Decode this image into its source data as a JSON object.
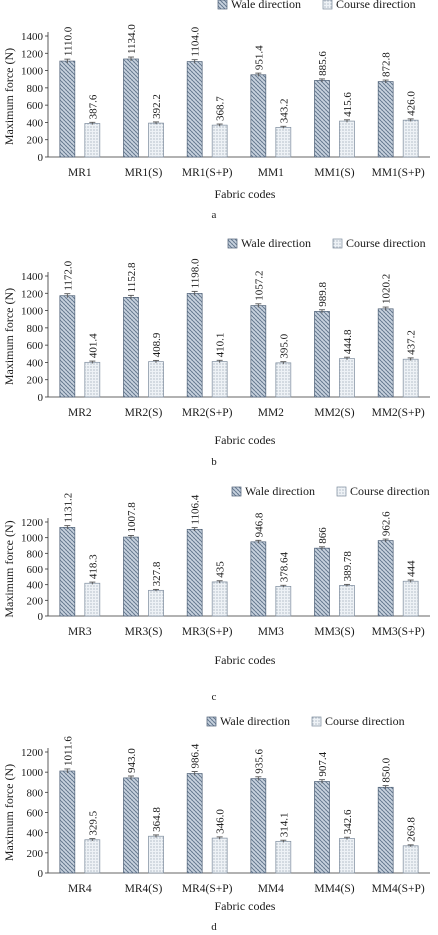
{
  "colors": {
    "wale_fill": "#c9d3df",
    "wale_hatch": "#5b6f86",
    "course_fill": "#eef2f6",
    "course_dots": "#6b7c8f",
    "axis": "#333333",
    "error_bar": "#555555"
  },
  "chart_data": [
    {
      "type": "bar",
      "panel": "a",
      "categories": [
        "MR1",
        "MR1(S)",
        "MR1(S+P)",
        "MM1",
        "MM1(S)",
        "MM1(S+P)"
      ],
      "series": [
        {
          "name": "Wale direction",
          "values": [
            1110.0,
            1134.0,
            1104.0,
            951.4,
            885.6,
            872.8
          ],
          "labels": [
            "1110.0",
            "1134.0",
            "1104.0",
            "951.4",
            "885.6",
            "872.8"
          ]
        },
        {
          "name": "Course direction",
          "values": [
            387.6,
            392.2,
            368.7,
            343.2,
            415.6,
            426.0
          ],
          "labels": [
            "387.6",
            "392.2",
            "368.7",
            "343.2",
            "415.6",
            "426.0"
          ]
        }
      ],
      "xlabel": "Fabric codes",
      "ylabel": "Maximum force (N)",
      "ylim": [
        0,
        1400
      ],
      "yticks": [
        0,
        200,
        400,
        600,
        800,
        1000,
        1200,
        1400
      ],
      "legend": "top-right",
      "grid": false
    },
    {
      "type": "bar",
      "panel": "b",
      "categories": [
        "MR2",
        "MR2(S)",
        "MR2(S+P)",
        "MM2",
        "MM2(S)",
        "MM2(S+P)"
      ],
      "series": [
        {
          "name": "Wale direction",
          "values": [
            1172.0,
            1152.8,
            1198.0,
            1057.2,
            989.8,
            1020.2
          ],
          "labels": [
            "1172.0",
            "1152.8",
            "1198.0",
            "1057.2",
            "989.8",
            "1020.2"
          ]
        },
        {
          "name": "Course direction",
          "values": [
            401.4,
            408.9,
            410.1,
            395.0,
            444.8,
            437.2
          ],
          "labels": [
            "401.4",
            "408.9",
            "410.1",
            "395.0",
            "444.8",
            "437.2"
          ]
        }
      ],
      "xlabel": "Fabric codes",
      "ylabel": "Maximum force (N)",
      "ylim": [
        0,
        1400
      ],
      "yticks": [
        0,
        200,
        400,
        600,
        800,
        1000,
        1200,
        1400
      ],
      "legend": "top-right",
      "grid": false
    },
    {
      "type": "bar",
      "panel": "c",
      "categories": [
        "MR3",
        "MR3(S)",
        "MR3(S+P)",
        "MM3",
        "MM3(S)",
        "MM3(S+P)"
      ],
      "series": [
        {
          "name": "Wale direction",
          "values": [
            1131.2,
            1007.8,
            1106.4,
            946.8,
            866,
            962.6
          ],
          "labels": [
            "1131.2",
            "1007.8",
            "1106.4",
            "946.8",
            "866",
            "962.6"
          ]
        },
        {
          "name": "Course direction",
          "values": [
            418.3,
            327.8,
            435,
            378.64,
            389.78,
            444
          ],
          "labels": [
            "418.3",
            "327.8",
            "435",
            "378.64",
            "389.78",
            "444"
          ]
        }
      ],
      "xlabel": "Fabric codes",
      "ylabel": "Maximum force (N)",
      "ylim": [
        0,
        1200
      ],
      "yticks": [
        0,
        200,
        400,
        600,
        800,
        1000,
        1200
      ],
      "legend": "top-right",
      "grid": false
    },
    {
      "type": "bar",
      "panel": "d",
      "categories": [
        "MR4",
        "MR4(S)",
        "MR4(S+P)",
        "MM4",
        "MM4(S)",
        "MM4(S+P)"
      ],
      "series": [
        {
          "name": "Wale direction",
          "values": [
            1011.6,
            943.0,
            986.4,
            935.6,
            907.4,
            850.0
          ],
          "labels": [
            "1011.6",
            "943.0",
            "986.4",
            "935.6",
            "907.4",
            "850.0"
          ]
        },
        {
          "name": "Course direction",
          "values": [
            329.5,
            364.8,
            346.0,
            314.1,
            342.6,
            269.8
          ],
          "labels": [
            "329.5",
            "364.8",
            "346.0",
            "314.1",
            "342.6",
            "269.8"
          ]
        }
      ],
      "xlabel": "Fabric codes",
      "ylabel": "Maximum force (N)",
      "ylim": [
        0,
        1200
      ],
      "yticks": [
        0,
        200,
        400,
        600,
        800,
        1000,
        1200
      ],
      "legend": "top-right",
      "grid": false
    }
  ]
}
